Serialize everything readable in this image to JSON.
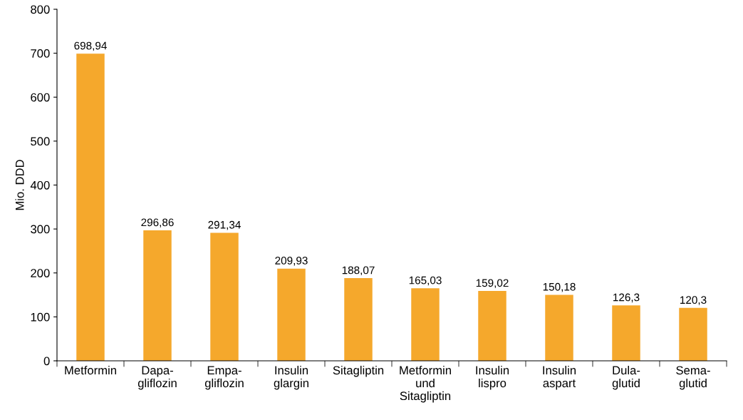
{
  "chart_data": {
    "type": "bar",
    "ylabel": "Mio. DDD",
    "categories": [
      "Metformin",
      "Dapa-\ngliflozin",
      "Empa-\ngliflozin",
      "Insulin\nglargin",
      "Sitagliptin",
      "Metformin\nund\nSitagliptin",
      "Insulin\nlispro",
      "Insulin\naspart",
      "Dula-\nglutid",
      "Sema-\nglutid"
    ],
    "values": [
      698.94,
      296.86,
      291.34,
      209.93,
      188.07,
      165.03,
      159.02,
      150.18,
      126.3,
      120.3
    ],
    "value_labels": [
      "698,94",
      "296,86",
      "291,34",
      "209,93",
      "188,07",
      "165,03",
      "159,02",
      "150,18",
      "126,3",
      "120,3"
    ],
    "color": "#f5a82c",
    "ylim": [
      0,
      800
    ],
    "yticks": [
      0,
      100,
      200,
      300,
      400,
      500,
      600,
      700,
      800
    ],
    "grid": false,
    "legend": false
  }
}
